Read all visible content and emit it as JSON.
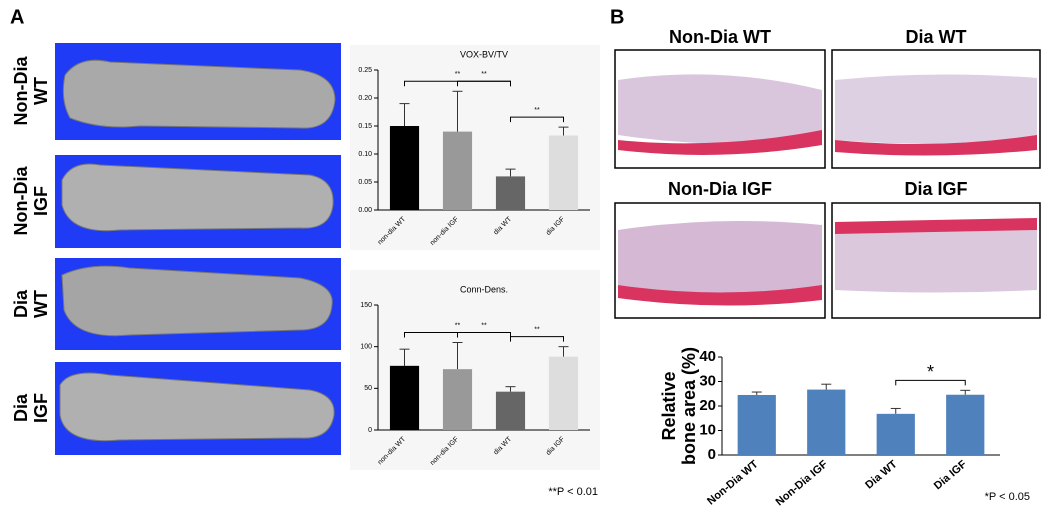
{
  "panels": [
    "A",
    "B"
  ],
  "micro_ct_labels": [
    [
      "Non-Dia",
      "WT"
    ],
    [
      "Non-Dia",
      "IGF"
    ],
    [
      "Dia",
      "WT"
    ],
    [
      "Dia",
      "IGF"
    ]
  ],
  "histology_labels": [
    "Non-Dia WT",
    "Dia WT",
    "Non-Dia IGF",
    "Dia IGF"
  ],
  "chart_data": [
    {
      "type": "bar",
      "title": "VOX-BV/TV",
      "categories": [
        "non-dia WT",
        "non-dia IGF",
        "dia WT",
        "dia IGF"
      ],
      "values": [
        0.15,
        0.14,
        0.06,
        0.133
      ],
      "errors": [
        0.04,
        0.072,
        0.013,
        0.015
      ],
      "colors": [
        "#000000",
        "#999999",
        "#666666",
        "#dddddd"
      ],
      "ylim": [
        0,
        0.25
      ],
      "yticks": [
        {
          "value": 0,
          "label": "0.00"
        },
        0.05,
        {
          "value": 0.1,
          "label": "0.10"
        },
        0.15,
        {
          "value": 0.2,
          "label": "0.20"
        },
        0.25
      ],
      "significance": [
        {
          "pair": [
            0,
            2
          ],
          "label": "**"
        },
        {
          "pair": [
            1,
            2
          ],
          "label": "**"
        },
        {
          "pair": [
            2,
            3
          ],
          "label": "**"
        }
      ]
    },
    {
      "type": "bar",
      "title": "Conn-Dens.",
      "categories": [
        "non-dia WT",
        "non-dia IGF",
        "dia WT",
        "dia IGF"
      ],
      "values": [
        77,
        73,
        46,
        88
      ],
      "errors": [
        20,
        32,
        6,
        12
      ],
      "colors": [
        "#000000",
        "#999999",
        "#666666",
        "#dddddd"
      ],
      "ylim": [
        0,
        150
      ],
      "yticks": [
        0,
        50,
        100,
        150
      ],
      "significance": [
        {
          "pair": [
            0,
            2
          ],
          "label": "**"
        },
        {
          "pair": [
            1,
            2
          ],
          "label": "**"
        },
        {
          "pair": [
            2,
            3
          ],
          "label": "**"
        }
      ],
      "note": "**P < 0.01"
    },
    {
      "type": "bar",
      "ylabel": [
        "Relative",
        "bone area (%)"
      ],
      "categories": [
        "Non-Dia WT",
        "Non-Dia IGF",
        "Dia WT",
        "Dia IGF"
      ],
      "values": [
        24.5,
        26.7,
        16.8,
        24.6
      ],
      "errors": [
        1.2,
        2.2,
        2.2,
        1.8
      ],
      "color": "#4f81bd",
      "ylim": [
        0,
        40
      ],
      "yticks": [
        0,
        10,
        20,
        30,
        40
      ],
      "significance": [
        {
          "pair": [
            2,
            3
          ],
          "label": "*"
        }
      ],
      "note": "*P < 0.05"
    }
  ]
}
